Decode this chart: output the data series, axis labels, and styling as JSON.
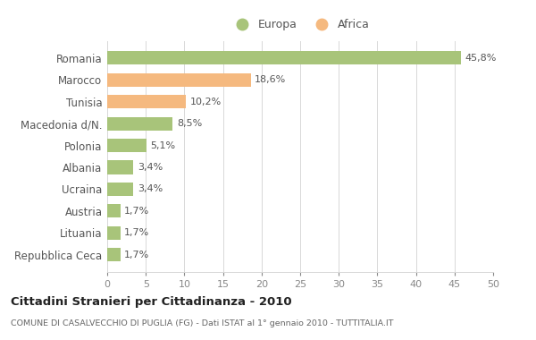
{
  "categories": [
    "Romania",
    "Marocco",
    "Tunisia",
    "Macedonia d/N.",
    "Polonia",
    "Albania",
    "Ucraina",
    "Austria",
    "Lituania",
    "Repubblica Ceca"
  ],
  "values": [
    45.8,
    18.6,
    10.2,
    8.5,
    5.1,
    3.4,
    3.4,
    1.7,
    1.7,
    1.7
  ],
  "labels": [
    "45,8%",
    "18,6%",
    "10,2%",
    "8,5%",
    "5,1%",
    "3,4%",
    "3,4%",
    "1,7%",
    "1,7%",
    "1,7%"
  ],
  "colors": [
    "#a8c47a",
    "#f5b97f",
    "#f5b97f",
    "#a8c47a",
    "#a8c47a",
    "#a8c47a",
    "#a8c47a",
    "#a8c47a",
    "#a8c47a",
    "#a8c47a"
  ],
  "europa_color": "#a8c47a",
  "africa_color": "#f5b97f",
  "legend_europa": "Europa",
  "legend_africa": "Africa",
  "title": "Cittadini Stranieri per Cittadinanza - 2010",
  "subtitle": "COMUNE DI CASALVECCHIO DI PUGLIA (FG) - Dati ISTAT al 1° gennaio 2010 - TUTTITALIA.IT",
  "xlim": [
    0,
    50
  ],
  "xticks": [
    0,
    5,
    10,
    15,
    20,
    25,
    30,
    35,
    40,
    45,
    50
  ],
  "bg_color": "#ffffff",
  "grid_color": "#d8d8d8",
  "bar_height": 0.62,
  "label_fontsize": 8,
  "ytick_fontsize": 8.5,
  "xtick_fontsize": 8
}
